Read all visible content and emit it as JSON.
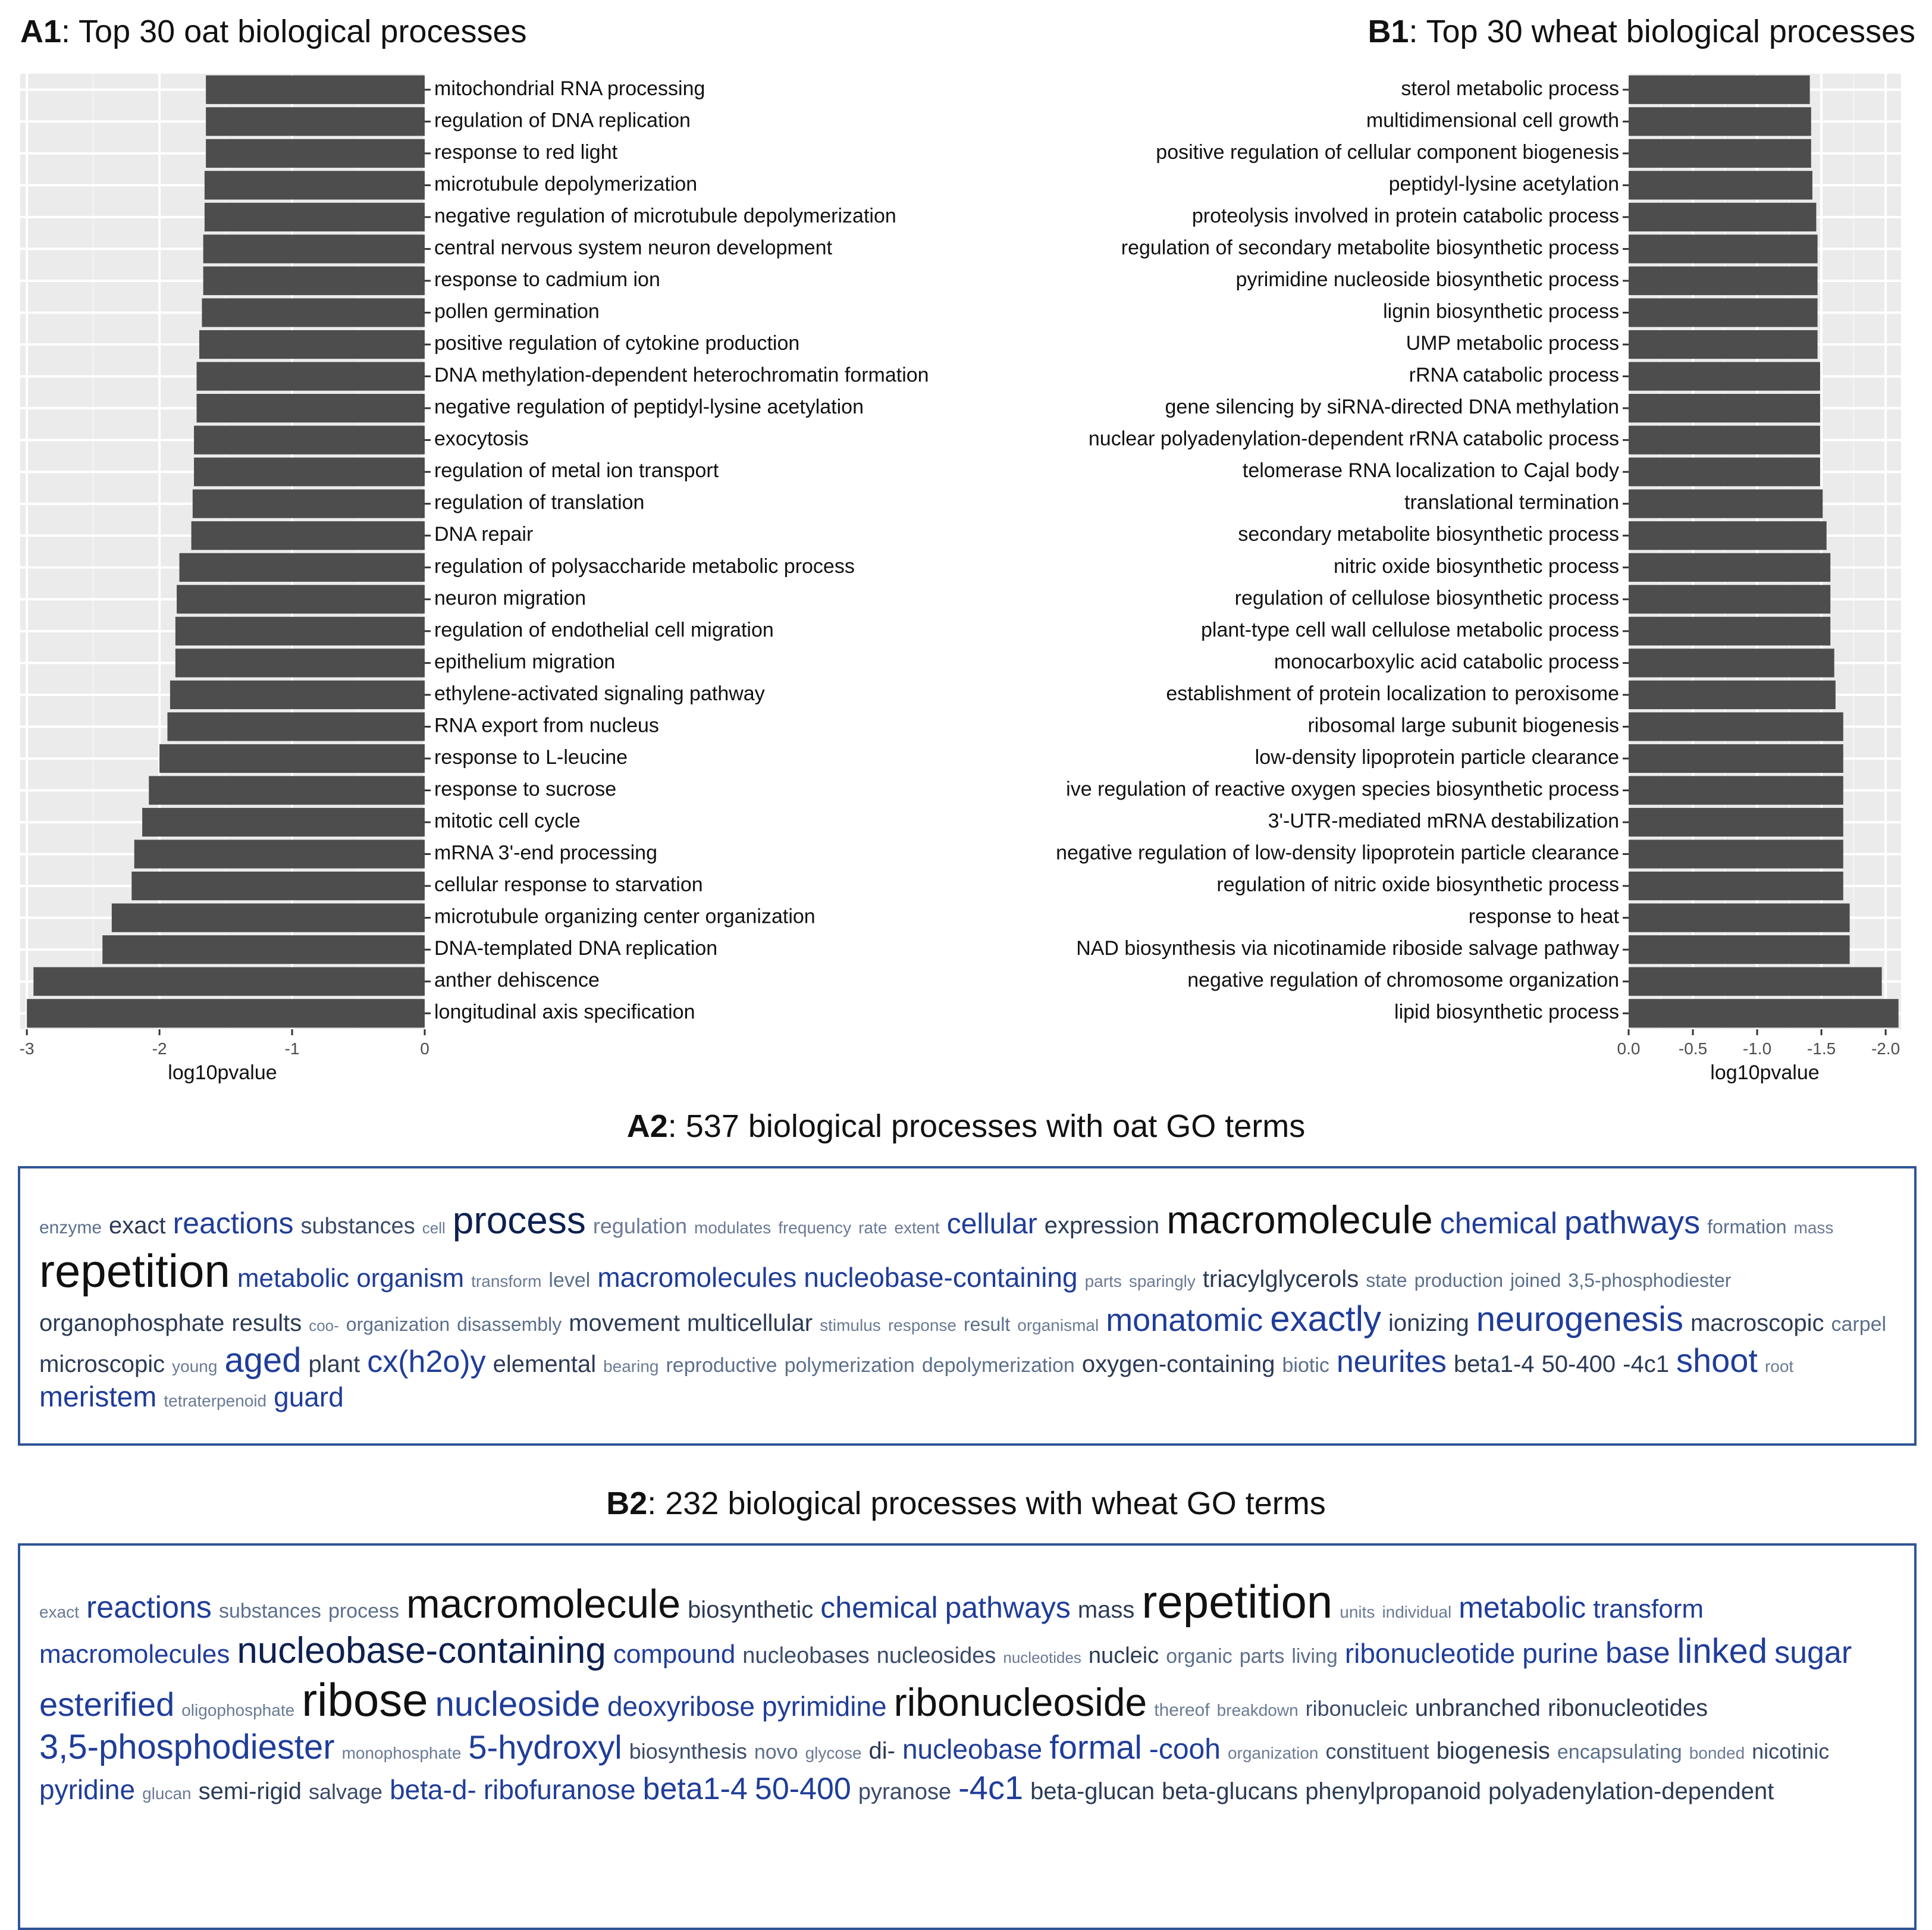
{
  "panels": {
    "a1": {
      "label": "A1",
      "title": ": Top 30 oat biological processes"
    },
    "b1": {
      "label": "B1",
      "title": ": Top 30 wheat biological processes"
    },
    "a2": {
      "label": "A2",
      "title": ": 537 biological processes with oat GO terms"
    },
    "b2": {
      "label": "B2",
      "title": ": 232 biological processes with wheat GO terms"
    }
  },
  "colors": {
    "bar": "#4d4d4d",
    "panel_bg": "#ebebeb",
    "grid": "#ffffff",
    "cloud_border": "#2f5597"
  },
  "chart_data": [
    {
      "type": "bar",
      "orientation": "horizontal",
      "xlabel": "log10pvalue",
      "xlim": [
        -3.05,
        0
      ],
      "ticks": [
        -3,
        -2,
        -1,
        0
      ],
      "tick_labels": [
        "-3",
        "-2",
        "-1",
        "0"
      ],
      "categories": [
        "mitochondrial RNA processing",
        "regulation of DNA replication",
        "response to red light",
        "microtubule depolymerization",
        "negative regulation of microtubule depolymerization",
        "central nervous system neuron development",
        "response to cadmium ion",
        "pollen germination",
        "positive regulation of cytokine production",
        "DNA methylation-dependent heterochromatin formation",
        "negative regulation of peptidyl-lysine acetylation",
        "exocytosis",
        "regulation of metal ion transport",
        "regulation of translation",
        "DNA repair",
        "regulation of polysaccharide metabolic process",
        "neuron migration",
        "regulation of endothelial cell migration",
        "epithelium migration",
        "ethylene-activated signaling pathway",
        "RNA export from nucleus",
        "response to L-leucine",
        "response to sucrose",
        "mitotic cell cycle",
        "mRNA 3'-end processing",
        "cellular response to starvation",
        "microtubule organizing center organization",
        "DNA-templated DNA replication",
        "anther dehiscence",
        "longitudinal axis specification"
      ],
      "values": [
        -1.65,
        -1.65,
        -1.65,
        -1.66,
        -1.66,
        -1.67,
        -1.67,
        -1.68,
        -1.7,
        -1.72,
        -1.72,
        -1.74,
        -1.74,
        -1.75,
        -1.76,
        -1.85,
        -1.87,
        -1.88,
        -1.88,
        -1.92,
        -1.94,
        -2.0,
        -2.08,
        -2.13,
        -2.19,
        -2.21,
        -2.36,
        -2.43,
        -2.95,
        -3.0
      ]
    },
    {
      "type": "bar",
      "orientation": "horizontal",
      "xlabel": "log10pvalue",
      "xlim": [
        0,
        -2.12
      ],
      "ticks": [
        0,
        -0.5,
        -1,
        -1.5,
        -2
      ],
      "tick_labels": [
        "0.0",
        "-0.5",
        "-1.0",
        "-1.5",
        "-2.0"
      ],
      "categories": [
        "sterol metabolic process",
        "multidimensional cell growth",
        "positive regulation of cellular component biogenesis",
        "peptidyl-lysine acetylation",
        "proteolysis involved in protein catabolic process",
        "regulation of secondary metabolite biosynthetic process",
        "pyrimidine nucleoside biosynthetic process",
        "lignin biosynthetic process",
        "UMP metabolic process",
        "rRNA catabolic process",
        "gene silencing by siRNA-directed DNA methylation",
        "nuclear polyadenylation-dependent rRNA catabolic process",
        "telomerase RNA localization to Cajal body",
        "translational termination",
        "secondary metabolite biosynthetic process",
        "nitric oxide biosynthetic process",
        "regulation of cellulose biosynthetic process",
        "plant-type cell wall cellulose metabolic process",
        "monocarboxylic acid catabolic process",
        "establishment of protein localization to peroxisome",
        "ribosomal large subunit biogenesis",
        "low-density lipoprotein particle clearance",
        "ive regulation of reactive oxygen species biosynthetic process",
        "3'-UTR-mediated mRNA destabilization",
        "negative regulation of low-density lipoprotein particle clearance",
        "regulation of nitric oxide biosynthetic process",
        "response to heat",
        "NAD biosynthesis via nicotinamide riboside salvage pathway",
        "negative regulation of chromosome organization",
        "lipid biosynthetic process"
      ],
      "values": [
        -1.41,
        -1.42,
        -1.42,
        -1.43,
        -1.46,
        -1.47,
        -1.47,
        -1.47,
        -1.47,
        -1.49,
        -1.49,
        -1.49,
        -1.49,
        -1.51,
        -1.54,
        -1.57,
        -1.57,
        -1.57,
        -1.6,
        -1.61,
        -1.67,
        -1.67,
        -1.67,
        -1.67,
        -1.67,
        -1.67,
        -1.72,
        -1.72,
        -1.97,
        -2.1
      ]
    }
  ],
  "wordclouds": {
    "a2": [
      [
        "enzyme",
        30,
        "#5b6f8c"
      ],
      [
        "exact",
        40,
        "#2b3a55"
      ],
      [
        "reactions",
        50,
        "#1f3d99"
      ],
      [
        "substances",
        38,
        "#3a4a6a"
      ],
      [
        "cell",
        26,
        "#6a7a95"
      ],
      [
        "process",
        64,
        "#0d2050"
      ],
      [
        "regulation",
        36,
        "#6a7a95"
      ],
      [
        "modulates",
        28,
        "#6a7a95"
      ],
      [
        "frequency",
        28,
        "#6a7a95"
      ],
      [
        "rate",
        28,
        "#6a7a95"
      ],
      [
        "extent",
        28,
        "#6a7a95"
      ],
      [
        "cellular",
        48,
        "#1f3d99"
      ],
      [
        "expression",
        40,
        "#2b3a55"
      ],
      [
        "macromolecule",
        66,
        "#111111"
      ],
      [
        "chemical",
        50,
        "#1f3d99"
      ],
      [
        "pathways",
        54,
        "#1f3d99"
      ],
      [
        "formation",
        32,
        "#5b6f8c"
      ],
      [
        "mass",
        28,
        "#6a7a95"
      ],
      [
        "repetition",
        78,
        "#111111"
      ],
      [
        "metabolic",
        44,
        "#1f3d99"
      ],
      [
        "organism",
        44,
        "#1f3d99"
      ],
      [
        "transform",
        28,
        "#6a7a95"
      ],
      [
        "level",
        34,
        "#5b6f8c"
      ],
      [
        "macromolecules",
        46,
        "#1f3d99"
      ],
      [
        "nucleobase-containing",
        46,
        "#1f3d99"
      ],
      [
        "parts",
        28,
        "#6a7a95"
      ],
      [
        "sparingly",
        28,
        "#6a7a95"
      ],
      [
        "triacylglycerols",
        40,
        "#2b3a55"
      ],
      [
        "state",
        32,
        "#5b6f8c"
      ],
      [
        "production",
        32,
        "#5b6f8c"
      ],
      [
        "joined",
        32,
        "#5b6f8c"
      ],
      [
        "3,5-phosphodiester",
        32,
        "#5b6f8c"
      ],
      [
        "organophosphate",
        40,
        "#2b3a55"
      ],
      [
        "results",
        40,
        "#2b3a55"
      ],
      [
        "coo-",
        26,
        "#6a7a95"
      ],
      [
        "organization",
        32,
        "#5b6f8c"
      ],
      [
        "disassembly",
        32,
        "#5b6f8c"
      ],
      [
        "movement",
        40,
        "#2b3a55"
      ],
      [
        "multicellular",
        40,
        "#2b3a55"
      ],
      [
        "stimulus",
        28,
        "#6a7a95"
      ],
      [
        "response",
        28,
        "#6a7a95"
      ],
      [
        "result",
        32,
        "#5b6f8c"
      ],
      [
        "organismal",
        28,
        "#6a7a95"
      ],
      [
        "monatomic",
        54,
        "#1f3d99"
      ],
      [
        "exactly",
        60,
        "#1f3d99"
      ],
      [
        "ionizing",
        40,
        "#2b3a55"
      ],
      [
        "neurogenesis",
        58,
        "#1f3d99"
      ],
      [
        "macroscopic",
        40,
        "#2b3a55"
      ],
      [
        "carpel",
        34,
        "#5b6f8c"
      ],
      [
        "microscopic",
        40,
        "#2b3a55"
      ],
      [
        "young",
        28,
        "#6a7a95"
      ],
      [
        "aged",
        58,
        "#1f3d99"
      ],
      [
        "plant",
        40,
        "#2b3a55"
      ],
      [
        "cx(h2o)y",
        52,
        "#1f3d99"
      ],
      [
        "elemental",
        40,
        "#2b3a55"
      ],
      [
        "bearing",
        28,
        "#6a7a95"
      ],
      [
        "reproductive",
        34,
        "#5b6f8c"
      ],
      [
        "polymerization",
        34,
        "#5b6f8c"
      ],
      [
        "depolymerization",
        34,
        "#5b6f8c"
      ],
      [
        "oxygen-containing",
        40,
        "#2b3a55"
      ],
      [
        "biotic",
        34,
        "#5b6f8c"
      ],
      [
        "neurites",
        52,
        "#1f3d99"
      ],
      [
        "beta1-4",
        40,
        "#2b3a55"
      ],
      [
        "50-400",
        40,
        "#2b3a55"
      ],
      [
        "-4c1",
        40,
        "#2b3a55"
      ],
      [
        "shoot",
        56,
        "#1f3d99"
      ],
      [
        "root",
        28,
        "#6a7a95"
      ],
      [
        "meristem",
        48,
        "#1f3d99"
      ],
      [
        "tetraterpenoid",
        28,
        "#6a7a95"
      ],
      [
        "guard",
        46,
        "#1f3d99"
      ]
    ],
    "b2": [
      [
        "exact",
        28,
        "#6a7a95"
      ],
      [
        "reactions",
        52,
        "#1f3d99"
      ],
      [
        "substances",
        34,
        "#5b6f8c"
      ],
      [
        "process",
        34,
        "#5b6f8c"
      ],
      [
        "macromolecule",
        68,
        "#111111"
      ],
      [
        "biosynthetic",
        40,
        "#2b3a55"
      ],
      [
        "chemical",
        50,
        "#1f3d99"
      ],
      [
        "pathways",
        50,
        "#1f3d99"
      ],
      [
        "mass",
        40,
        "#2b3a55"
      ],
      [
        "repetition",
        78,
        "#111111"
      ],
      [
        "units",
        28,
        "#6a7a95"
      ],
      [
        "individual",
        28,
        "#6a7a95"
      ],
      [
        "metabolic",
        50,
        "#1f3d99"
      ],
      [
        "transform",
        44,
        "#1f3d99"
      ],
      [
        "macromolecules",
        44,
        "#1f3d99"
      ],
      [
        "nucleobase-containing",
        62,
        "#0d2050"
      ],
      [
        "compound",
        44,
        "#1f3d99"
      ],
      [
        "nucleobases",
        38,
        "#3a4a6a"
      ],
      [
        "nucleosides",
        38,
        "#3a4a6a"
      ],
      [
        "nucleotides",
        26,
        "#6a7a95"
      ],
      [
        "nucleic",
        38,
        "#2b3a55"
      ],
      [
        "organic",
        34,
        "#5b6f8c"
      ],
      [
        "parts",
        34,
        "#5b6f8c"
      ],
      [
        "living",
        34,
        "#5b6f8c"
      ],
      [
        "ribonucleotide",
        46,
        "#1f3d99"
      ],
      [
        "purine",
        46,
        "#1f3d99"
      ],
      [
        "base",
        50,
        "#1f3d99"
      ],
      [
        "linked",
        58,
        "#1f3d99"
      ],
      [
        "sugar",
        52,
        "#1f3d99"
      ],
      [
        "esterified",
        56,
        "#1f3d99"
      ],
      [
        "oligophosphate",
        28,
        "#6a7a95"
      ],
      [
        "ribose",
        78,
        "#111111"
      ],
      [
        "nucleoside",
        58,
        "#1f3d99"
      ],
      [
        "deoxyribose",
        46,
        "#1f3d99"
      ],
      [
        "pyrimidine",
        46,
        "#1f3d99"
      ],
      [
        "ribonucleoside",
        66,
        "#111111"
      ],
      [
        "thereof",
        30,
        "#6a7a95"
      ],
      [
        "breakdown",
        28,
        "#6a7a95"
      ],
      [
        "ribonucleic",
        36,
        "#3a4a6a"
      ],
      [
        "unbranched",
        40,
        "#2b3a55"
      ],
      [
        "ribonucleotides",
        40,
        "#2b3a55"
      ],
      [
        "3,5-phosphodiester",
        58,
        "#1f3d99"
      ],
      [
        "monophosphate",
        28,
        "#6a7a95"
      ],
      [
        "5-hydroxyl",
        56,
        "#1f3d99"
      ],
      [
        "biosynthesis",
        36,
        "#3a4a6a"
      ],
      [
        "novo",
        34,
        "#5b6f8c"
      ],
      [
        "glycose",
        28,
        "#6a7a95"
      ],
      [
        "di-",
        40,
        "#2b3a55"
      ],
      [
        "nucleobase",
        46,
        "#1f3d99"
      ],
      [
        "formal",
        56,
        "#1f3d99"
      ],
      [
        "-cooh",
        48,
        "#1f3d99"
      ],
      [
        "organization",
        28,
        "#6a7a95"
      ],
      [
        "constituent",
        36,
        "#3a4a6a"
      ],
      [
        "biogenesis",
        40,
        "#2b3a55"
      ],
      [
        "encapsulating",
        34,
        "#5b6f8c"
      ],
      [
        "bonded",
        28,
        "#6a7a95"
      ],
      [
        "nicotinic",
        36,
        "#3a4a6a"
      ],
      [
        "pyridine",
        46,
        "#1f3d99"
      ],
      [
        "glucan",
        28,
        "#6a7a95"
      ],
      [
        "semi-rigid",
        40,
        "#2b3a55"
      ],
      [
        "salvage",
        36,
        "#3a4a6a"
      ],
      [
        "beta-d-",
        46,
        "#1f3d99"
      ],
      [
        "ribofuranose",
        46,
        "#1f3d99"
      ],
      [
        "beta1-4",
        52,
        "#1f3d99"
      ],
      [
        "50-400",
        52,
        "#1f3d99"
      ],
      [
        "pyranose",
        38,
        "#3a4a6a"
      ],
      [
        "-4c1",
        56,
        "#1f3d99"
      ],
      [
        "beta-glucan",
        40,
        "#2b3a55"
      ],
      [
        "beta-glucans",
        40,
        "#2b3a55"
      ],
      [
        "phenylpropanoid",
        40,
        "#2b3a55"
      ],
      [
        "polyadenylation-dependent",
        40,
        "#2b3a55"
      ]
    ]
  }
}
